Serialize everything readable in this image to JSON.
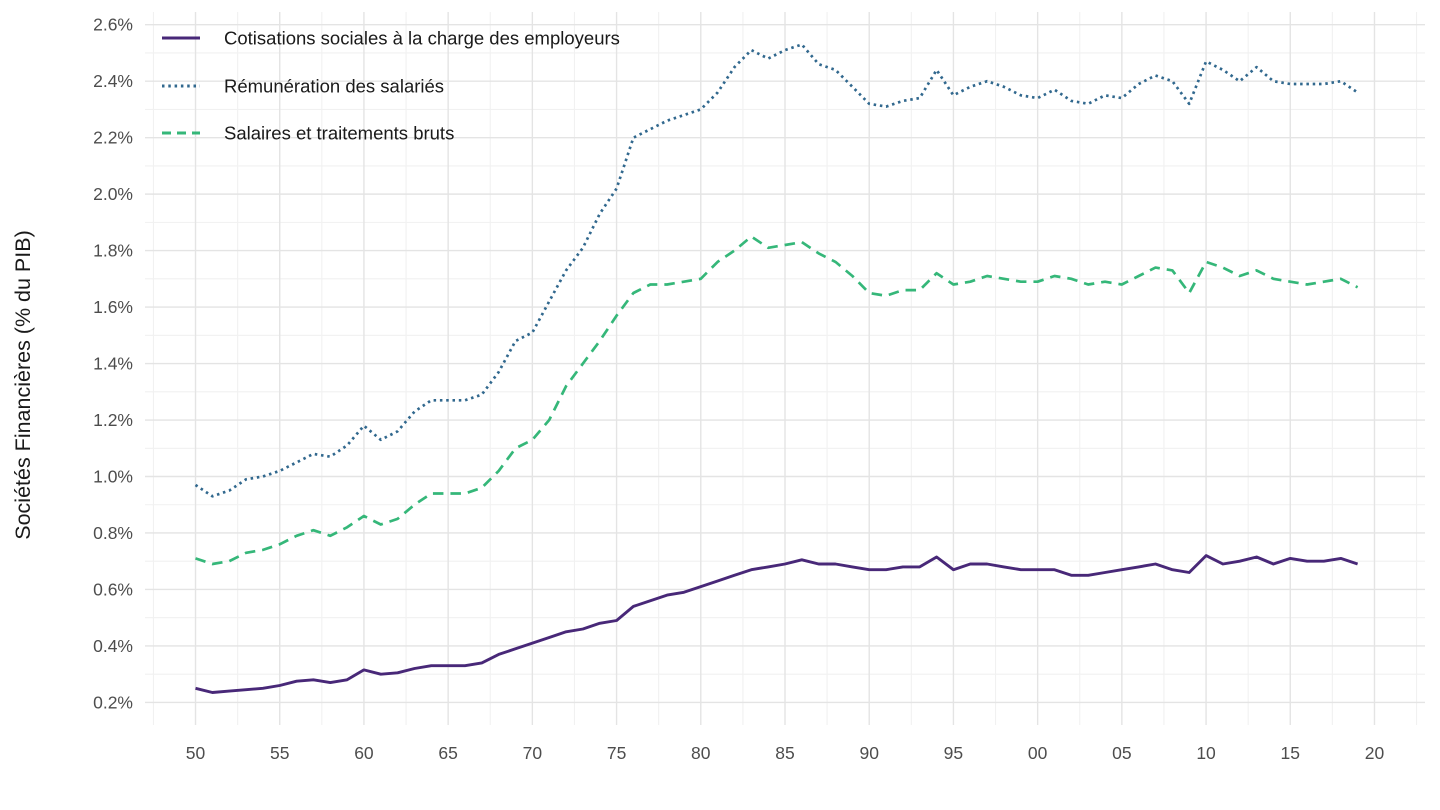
{
  "chart_data": {
    "type": "line",
    "title": "",
    "xlabel": "",
    "ylabel": "Sociétés Financières (% du PIB)",
    "unit": "% du PIB",
    "xlim": [
      1947,
      2023
    ],
    "ylim": [
      0.12,
      2.645
    ],
    "grid": {
      "major_color": "#e4e4e4",
      "minor_color": "#f1f1f1",
      "grid_on": true
    },
    "legend_position": "top-left-inside",
    "axis_text_color": "#4d4d4d",
    "title_text_color": "#1a1a1a",
    "x_ticks": [
      {
        "year": 1950,
        "label": "50"
      },
      {
        "year": 1955,
        "label": "55"
      },
      {
        "year": 1960,
        "label": "60"
      },
      {
        "year": 1965,
        "label": "65"
      },
      {
        "year": 1970,
        "label": "70"
      },
      {
        "year": 1975,
        "label": "75"
      },
      {
        "year": 1980,
        "label": "80"
      },
      {
        "year": 1985,
        "label": "85"
      },
      {
        "year": 1990,
        "label": "90"
      },
      {
        "year": 1995,
        "label": "95"
      },
      {
        "year": 2000,
        "label": "00"
      },
      {
        "year": 2005,
        "label": "05"
      },
      {
        "year": 2010,
        "label": "10"
      },
      {
        "year": 2015,
        "label": "15"
      },
      {
        "year": 2020,
        "label": "20"
      }
    ],
    "y_ticks": [
      {
        "value": 0.2,
        "label": "0.2%"
      },
      {
        "value": 0.4,
        "label": "0.4%"
      },
      {
        "value": 0.6,
        "label": "0.6%"
      },
      {
        "value": 0.8,
        "label": "0.8%"
      },
      {
        "value": 1.0,
        "label": "1.0%"
      },
      {
        "value": 1.2,
        "label": "1.2%"
      },
      {
        "value": 1.4,
        "label": "1.4%"
      },
      {
        "value": 1.6,
        "label": "1.6%"
      },
      {
        "value": 1.8,
        "label": "1.8%"
      },
      {
        "value": 2.0,
        "label": "2.0%"
      },
      {
        "value": 2.2,
        "label": "2.2%"
      },
      {
        "value": 2.4,
        "label": "2.4%"
      },
      {
        "value": 2.6,
        "label": "2.6%"
      }
    ],
    "years": [
      1950,
      1951,
      1952,
      1953,
      1954,
      1955,
      1956,
      1957,
      1958,
      1959,
      1960,
      1961,
      1962,
      1963,
      1964,
      1965,
      1966,
      1967,
      1968,
      1969,
      1970,
      1971,
      1972,
      1973,
      1974,
      1975,
      1976,
      1977,
      1978,
      1979,
      1980,
      1981,
      1982,
      1983,
      1984,
      1985,
      1986,
      1987,
      1988,
      1989,
      1990,
      1991,
      1992,
      1993,
      1994,
      1995,
      1996,
      1997,
      1998,
      1999,
      2000,
      2001,
      2002,
      2003,
      2004,
      2005,
      2006,
      2007,
      2008,
      2009,
      2010,
      2011,
      2012,
      2013,
      2014,
      2015,
      2016,
      2017,
      2018,
      2019
    ],
    "series": [
      {
        "name": "Cotisations sociales à la charge des employeurs",
        "color": "#482878",
        "line_style": "solid",
        "values": [
          0.25,
          0.235,
          0.24,
          0.245,
          0.25,
          0.26,
          0.275,
          0.28,
          0.27,
          0.28,
          0.315,
          0.3,
          0.305,
          0.32,
          0.33,
          0.33,
          0.33,
          0.34,
          0.37,
          0.39,
          0.41,
          0.43,
          0.45,
          0.46,
          0.48,
          0.49,
          0.54,
          0.56,
          0.58,
          0.59,
          0.61,
          0.63,
          0.65,
          0.67,
          0.68,
          0.69,
          0.705,
          0.69,
          0.69,
          0.68,
          0.67,
          0.67,
          0.68,
          0.68,
          0.715,
          0.67,
          0.69,
          0.69,
          0.68,
          0.67,
          0.67,
          0.67,
          0.65,
          0.65,
          0.66,
          0.67,
          0.68,
          0.69,
          0.67,
          0.66,
          0.72,
          0.69,
          0.7,
          0.715,
          0.69,
          0.71,
          0.7,
          0.7,
          0.71,
          0.69
        ]
      },
      {
        "name": "Rémunération des salariés",
        "color": "#31688e",
        "line_style": "dotted",
        "values": [
          0.97,
          0.93,
          0.95,
          0.99,
          1.0,
          1.02,
          1.05,
          1.08,
          1.07,
          1.11,
          1.18,
          1.13,
          1.16,
          1.23,
          1.27,
          1.27,
          1.27,
          1.29,
          1.37,
          1.48,
          1.51,
          1.62,
          1.73,
          1.81,
          1.93,
          2.02,
          2.2,
          2.23,
          2.26,
          2.28,
          2.3,
          2.36,
          2.45,
          2.51,
          2.48,
          2.51,
          2.53,
          2.46,
          2.44,
          2.38,
          2.32,
          2.31,
          2.33,
          2.34,
          2.44,
          2.35,
          2.38,
          2.4,
          2.38,
          2.35,
          2.34,
          2.37,
          2.33,
          2.32,
          2.35,
          2.34,
          2.39,
          2.42,
          2.4,
          2.32,
          2.47,
          2.44,
          2.4,
          2.45,
          2.4,
          2.39,
          2.39,
          2.39,
          2.4,
          2.36
        ]
      },
      {
        "name": "Salaires et traitements bruts",
        "color": "#35b779",
        "line_style": "dashed",
        "values": [
          0.71,
          0.69,
          0.7,
          0.73,
          0.74,
          0.76,
          0.79,
          0.81,
          0.79,
          0.82,
          0.86,
          0.83,
          0.85,
          0.9,
          0.94,
          0.94,
          0.94,
          0.96,
          1.02,
          1.1,
          1.13,
          1.2,
          1.32,
          1.4,
          1.48,
          1.57,
          1.65,
          1.68,
          1.68,
          1.69,
          1.7,
          1.76,
          1.8,
          1.85,
          1.81,
          1.82,
          1.83,
          1.79,
          1.76,
          1.71,
          1.65,
          1.64,
          1.66,
          1.66,
          1.72,
          1.68,
          1.69,
          1.71,
          1.7,
          1.69,
          1.69,
          1.71,
          1.7,
          1.68,
          1.69,
          1.68,
          1.71,
          1.74,
          1.73,
          1.65,
          1.76,
          1.74,
          1.71,
          1.73,
          1.7,
          1.69,
          1.68,
          1.69,
          1.7,
          1.67
        ]
      }
    ]
  }
}
